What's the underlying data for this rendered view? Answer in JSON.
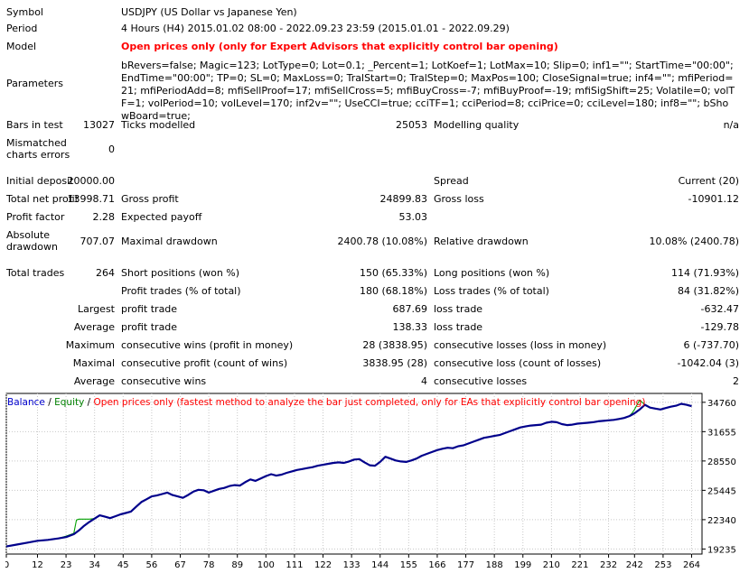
{
  "report": {
    "symbol": {
      "label": "Symbol",
      "value": "USDJPY (US Dollar vs Japanese Yen)"
    },
    "period": {
      "label": "Period",
      "value": "4 Hours (H4) 2015.01.02 08:00 - 2022.09.23 23:59 (2015.01.01 - 2022.09.29)"
    },
    "model": {
      "label": "Model",
      "value": "Open prices only (only for Expert Advisors that explicitly control bar opening)"
    },
    "parameters": {
      "label": "Parameters",
      "value": "bRevers=false; Magic=123; LotType=0; Lot=0.1; _Percent=1; LotKoef=1; LotMax=10; Slip=0; inf1=\"\"; StartTime=\"00:00\"; EndTime=\"00:00\"; TP=0; SL=0; MaxLoss=0; TralStart=0; TralStep=0; MaxPos=100; CloseSignal=true; inf4=\"\"; mfiPeriod=21; mfiPeriodAdd=8; mfiSellProof=17; mfiSellCross=5; mfiBuyCross=-7; mfiBuyProof=-19; mfiSigShift=25; Volatile=0; volTF=1; volPeriod=10; volLevel=170; inf2v=\"\"; UseCCI=true; cciTF=1; cciPeriod=8; cciPrice=0; cciLevel=180; inf8=\"\"; bShowBoard=true;"
    },
    "bars": {
      "label": "Bars in test",
      "value": "13027"
    },
    "ticks": {
      "label": "Ticks modelled",
      "value": "25053"
    },
    "quality": {
      "label": "Modelling quality",
      "value": "n/a"
    },
    "mismatched": {
      "label1": "Mismatched",
      "label2": "charts errors",
      "value": "0"
    },
    "initial_deposit": {
      "label": "Initial deposit",
      "value": "20000.00"
    },
    "spread": {
      "label": "Spread",
      "value": "Current (20)"
    },
    "net_profit": {
      "label": "Total net profit",
      "value": "13998.71"
    },
    "gross_profit": {
      "label": "Gross profit",
      "value": "24899.83"
    },
    "gross_loss": {
      "label": "Gross loss",
      "value": "-10901.12"
    },
    "profit_factor": {
      "label": "Profit factor",
      "value": "2.28"
    },
    "expected_payoff": {
      "label": "Expected payoff",
      "value": "53.03"
    },
    "abs_drawdown": {
      "label1": "Absolute",
      "label2": "drawdown",
      "value": "707.07"
    },
    "max_drawdown": {
      "label": "Maximal drawdown",
      "value": "2400.78 (10.08%)"
    },
    "rel_drawdown": {
      "label": "Relative drawdown",
      "value": "10.08% (2400.78)"
    },
    "total_trades": {
      "label": "Total trades",
      "value": "264"
    },
    "short_pos": {
      "label": "Short positions (won %)",
      "value": "150 (65.33%)"
    },
    "long_pos": {
      "label": "Long positions (won %)",
      "value": "114 (71.93%)"
    },
    "profit_trades": {
      "label": "Profit trades (% of total)",
      "value": "180 (68.18%)"
    },
    "loss_trades": {
      "label": "Loss trades (% of total)",
      "value": "84 (31.82%)"
    },
    "largest": {
      "label": "Largest",
      "p_label": "profit trade",
      "p_value": "687.69",
      "l_label": "loss trade",
      "l_value": "-632.47"
    },
    "average": {
      "label": "Average",
      "p_label": "profit trade",
      "p_value": "138.33",
      "l_label": "loss trade",
      "l_value": "-129.78"
    },
    "maximum": {
      "label": "Maximum",
      "p_label": "consecutive wins (profit in money)",
      "p_value": "28 (3838.95)",
      "l_label": "consecutive losses (loss in money)",
      "l_value": "6 (-737.70)"
    },
    "maximal": {
      "label": "Maximal",
      "p_label": "consecutive profit (count of wins)",
      "p_value": "3838.95 (28)",
      "l_label": "consecutive loss (count of losses)",
      "l_value": "-1042.04 (3)"
    },
    "average_consec": {
      "label": "Average",
      "p_label": "consecutive wins",
      "p_value": "4",
      "l_label": "consecutive losses",
      "l_value": "2"
    }
  },
  "legend": {
    "balance": "Balance",
    "sep1": " / ",
    "equity": "Equity",
    "sep2": " / ",
    "note": "Open prices only (fastest method to analyze the bar just completed, only for EAs that explicitly control bar opening)",
    "colors": {
      "balance": "#0000cc",
      "equity": "#008000",
      "note": "#ff0000",
      "text": "#000000"
    }
  },
  "chart_data": {
    "type": "line",
    "xlabel": "",
    "ylabel": "",
    "x_ticks": [
      0,
      12,
      23,
      34,
      45,
      56,
      67,
      78,
      89,
      100,
      111,
      122,
      133,
      144,
      155,
      166,
      177,
      188,
      199,
      210,
      221,
      232,
      242,
      253,
      264
    ],
    "y_ticks": [
      19235,
      22340,
      25445,
      28550,
      31655,
      34760
    ],
    "xlim": [
      0,
      268
    ],
    "ylim": [
      18700,
      35700
    ],
    "grid": true,
    "series": [
      {
        "name": "Balance",
        "color": "#00008b",
        "x": [
          0,
          4,
          8,
          12,
          16,
          20,
          23,
          26,
          28,
          30,
          32,
          34,
          36,
          38,
          40,
          42,
          44,
          46,
          48,
          50,
          52,
          54,
          56,
          58,
          60,
          62,
          64,
          66,
          68,
          70,
          72,
          74,
          76,
          78,
          80,
          82,
          84,
          86,
          88,
          90,
          92,
          94,
          96,
          98,
          100,
          102,
          104,
          106,
          108,
          110,
          112,
          114,
          116,
          118,
          120,
          122,
          124,
          126,
          128,
          130,
          132,
          134,
          136,
          138,
          140,
          142,
          144,
          146,
          148,
          150,
          152,
          154,
          156,
          158,
          160,
          162,
          164,
          166,
          168,
          170,
          172,
          174,
          176,
          178,
          180,
          182,
          184,
          186,
          188,
          190,
          192,
          194,
          196,
          198,
          200,
          202,
          204,
          206,
          208,
          210,
          212,
          214,
          216,
          218,
          220,
          222,
          224,
          226,
          228,
          230,
          232,
          234,
          236,
          238,
          240,
          242,
          244,
          246,
          248,
          250,
          252,
          254,
          256,
          258,
          260,
          262,
          264
        ],
        "y": [
          19500,
          19700,
          19900,
          20100,
          20200,
          20350,
          20500,
          20800,
          21200,
          21700,
          22100,
          22450,
          22800,
          22650,
          22500,
          22700,
          22900,
          23050,
          23200,
          23700,
          24200,
          24500,
          24800,
          24900,
          25050,
          25200,
          24950,
          24800,
          24650,
          24950,
          25300,
          25500,
          25450,
          25200,
          25400,
          25600,
          25700,
          25900,
          26000,
          25950,
          26300,
          26600,
          26450,
          26700,
          26950,
          27150,
          27000,
          27100,
          27300,
          27450,
          27600,
          27700,
          27800,
          27900,
          28050,
          28150,
          28250,
          28350,
          28400,
          28350,
          28500,
          28700,
          28750,
          28400,
          28100,
          28050,
          28450,
          29000,
          28800,
          28600,
          28500,
          28450,
          28600,
          28800,
          29100,
          29300,
          29500,
          29700,
          29850,
          29950,
          29900,
          30100,
          30200,
          30400,
          30600,
          30800,
          31000,
          31100,
          31200,
          31300,
          31500,
          31700,
          31900,
          32100,
          32200,
          32300,
          32350,
          32400,
          32600,
          32700,
          32650,
          32450,
          32350,
          32400,
          32500,
          32550,
          32600,
          32650,
          32750,
          32800,
          32850,
          32900,
          33000,
          33100,
          33300,
          33600,
          34000,
          34500,
          34200,
          34100,
          34000,
          34150,
          34300,
          34400,
          34600,
          34500,
          34350
        ]
      },
      {
        "name": "Equity",
        "color": "#00a000",
        "x": [
          0,
          4,
          8,
          12,
          16,
          20,
          23,
          26,
          27,
          28,
          30,
          32,
          34,
          36,
          38,
          40,
          42,
          44,
          46,
          48,
          50,
          52,
          54,
          56,
          58,
          60,
          62,
          64,
          66,
          68,
          70,
          72,
          74,
          76,
          78,
          80,
          82,
          84,
          86,
          88,
          90,
          92,
          94,
          96,
          98,
          100,
          102,
          104,
          106,
          108,
          110,
          112,
          114,
          116,
          118,
          120,
          122,
          124,
          126,
          128,
          130,
          132,
          134,
          136,
          138,
          140,
          142,
          144,
          146,
          148,
          150,
          152,
          154,
          156,
          158,
          160,
          162,
          164,
          166,
          168,
          170,
          172,
          174,
          176,
          178,
          180,
          182,
          184,
          186,
          188,
          190,
          192,
          194,
          196,
          198,
          200,
          202,
          204,
          206,
          208,
          210,
          212,
          214,
          216,
          218,
          220,
          222,
          224,
          226,
          228,
          230,
          232,
          234,
          236,
          238,
          240,
          241,
          242,
          244,
          246,
          248,
          250,
          252,
          254,
          256,
          258,
          260,
          262,
          264
        ],
        "y": [
          19500,
          19700,
          19900,
          20100,
          20200,
          20350,
          20600,
          20900,
          22300,
          22400,
          22400,
          22400,
          22450,
          22800,
          22650,
          22500,
          22700,
          22900,
          23050,
          23200,
          23700,
          24200,
          24500,
          24800,
          24900,
          25050,
          25200,
          24950,
          24800,
          24650,
          24950,
          25300,
          25500,
          25450,
          25200,
          25400,
          25600,
          25700,
          25900,
          26000,
          25950,
          26300,
          26600,
          26450,
          26700,
          26950,
          27150,
          27000,
          27100,
          27300,
          27450,
          27600,
          27700,
          27800,
          27900,
          28050,
          28150,
          28250,
          28350,
          28400,
          28350,
          28500,
          28700,
          28750,
          28400,
          28100,
          28050,
          28450,
          29000,
          28800,
          28600,
          28500,
          28450,
          28600,
          28800,
          29100,
          29300,
          29500,
          29700,
          29850,
          29950,
          29900,
          30100,
          30200,
          30400,
          30600,
          30800,
          31000,
          31100,
          31200,
          31300,
          31500,
          31700,
          31900,
          32100,
          32200,
          32300,
          32350,
          32400,
          32600,
          32700,
          32650,
          32450,
          32350,
          32400,
          32500,
          32550,
          32600,
          32650,
          32750,
          32800,
          32850,
          32900,
          33000,
          33100,
          33300,
          33600,
          34000,
          35000,
          34500,
          34200,
          34100,
          34000,
          34150,
          34300,
          34400,
          34600,
          34500,
          34350
        ]
      }
    ]
  }
}
